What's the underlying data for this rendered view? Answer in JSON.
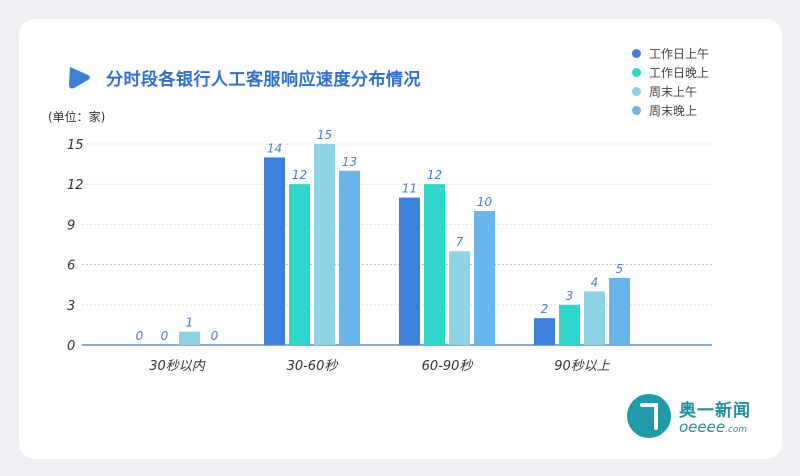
{
  "chart_data": {
    "type": "bar",
    "title": "分时段各银行人工客服响应速度分布情况",
    "unit_label": "(单位：家)",
    "categories": [
      "30秒以内",
      "30-60秒",
      "60-90秒",
      "90秒以上"
    ],
    "series": [
      {
        "name": "工作日上午",
        "color": "#3f7fdc",
        "values": [
          0,
          14,
          11,
          2
        ]
      },
      {
        "name": "工作日晚上",
        "color": "#2fd6cc",
        "values": [
          0,
          12,
          12,
          3
        ]
      },
      {
        "name": "周末上午",
        "color": "#8ed3e6",
        "values": [
          1,
          15,
          7,
          4
        ]
      },
      {
        "name": "周末晚上",
        "color": "#69b5ea",
        "values": [
          0,
          13,
          10,
          5
        ]
      }
    ],
    "yticks": [
      0,
      3,
      6,
      9,
      12,
      15
    ],
    "ylim": [
      0,
      15
    ],
    "grid": true,
    "legend_position": "top-right"
  },
  "brand": {
    "title_color": "#2f6fd0",
    "watermark_cn": "奥一新闻",
    "watermark_en": "oeeee",
    "watermark_en_suffix": ".com"
  }
}
